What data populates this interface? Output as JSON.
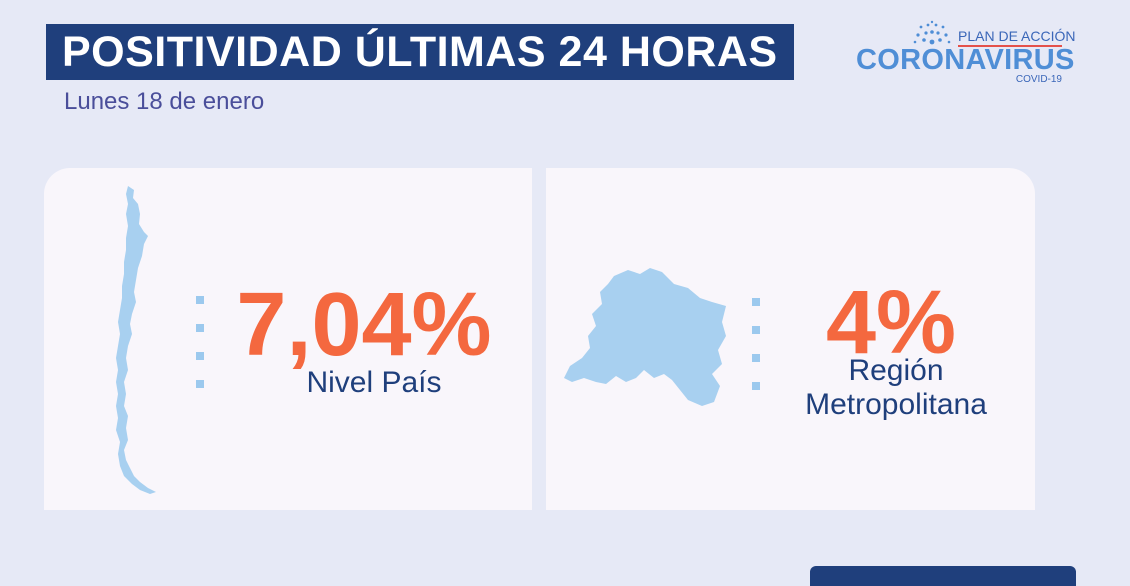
{
  "header": {
    "title": "POSITIVIDAD ÚLTIMAS 24 HORAS",
    "date": "Lunes 18 de enero"
  },
  "logo": {
    "plan_text": "PLAN DE ACCIÓN",
    "main_text": "CORONAVIRUS",
    "sub_text": "COVID-19",
    "icon": "gov-emblem-icon"
  },
  "national": {
    "value": "7,04%",
    "label": "Nivel País",
    "map_icon": "chile-map-icon"
  },
  "regional": {
    "value": "4%",
    "label_line1": "Región",
    "label_line2": "Metropolitana",
    "map_icon": "region-metropolitana-map-icon"
  },
  "colors": {
    "background": "#e6e9f6",
    "title_bar": "#1f3f7c",
    "accent_orange": "#f4683f",
    "map_blue": "#a8d0f0",
    "text_navy": "#1f3f7c",
    "subtitle_purple": "#4a4e9a",
    "logo_blue": "#4f8ed6",
    "logo_red": "#e4514a"
  }
}
